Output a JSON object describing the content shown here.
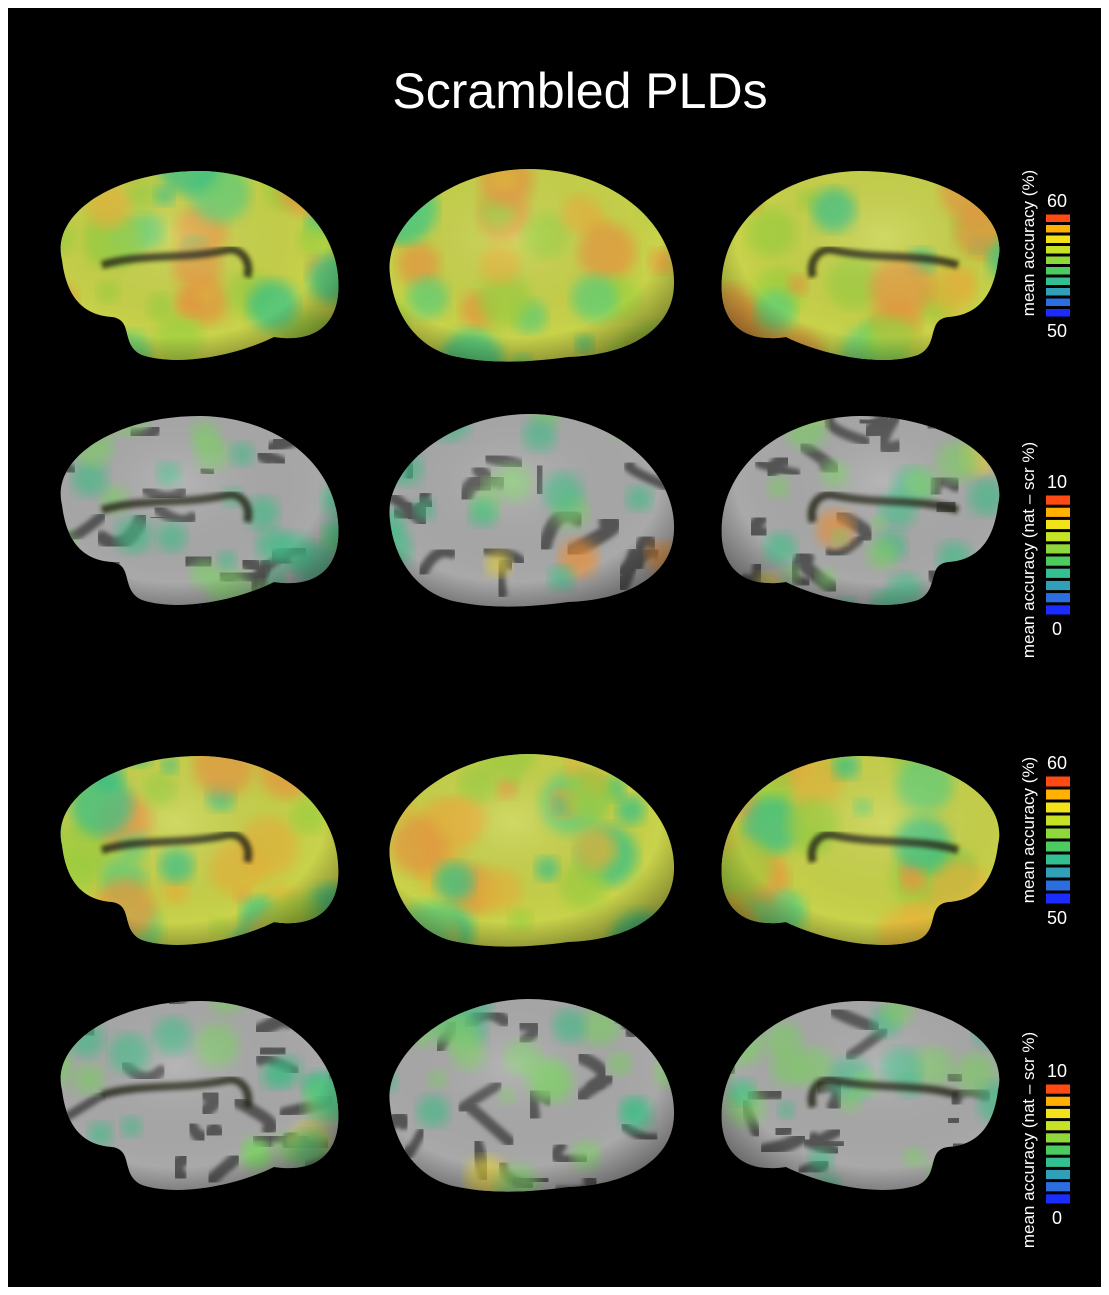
{
  "title": "Scrambled PLDs",
  "colorbars": [
    {
      "label": "mean accuracy (%)",
      "max": 60,
      "min": 50
    },
    {
      "label": "mean accuracy (nat – scr %)",
      "max": 10,
      "min": 0
    },
    {
      "label": "mean accuracy (%)",
      "max": 60,
      "min": 50
    },
    {
      "label": "mean accuracy (nat – scr %)",
      "max": 10,
      "min": 0
    }
  ]
}
